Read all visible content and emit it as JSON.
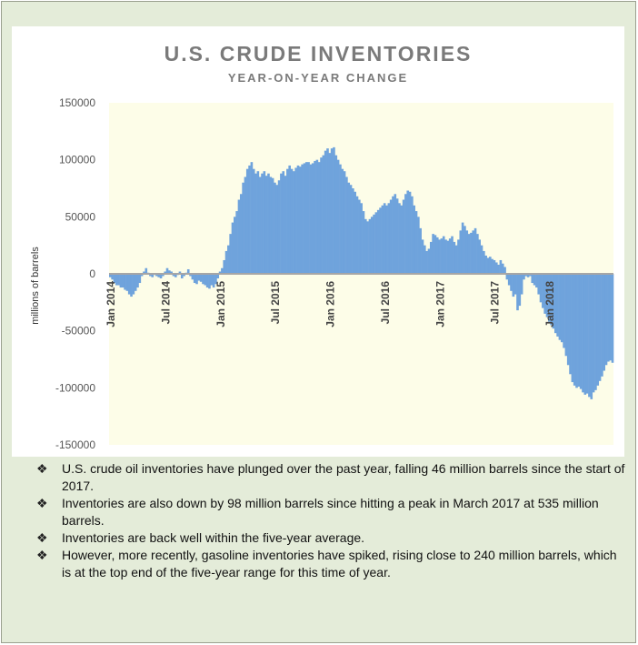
{
  "colors": {
    "bar": "#6fa3dc",
    "plot_background": "#fdfde8",
    "zero_line": "#a6a6a6",
    "page_background": "#e4ecd9"
  },
  "chart_data": {
    "type": "bar",
    "title": "U.S. CRUDE INVENTORIES",
    "subtitle": "YEAR-ON-YEAR CHANGE",
    "ylabel": "millions of barrels",
    "xlabel": "",
    "ylim": [
      -150000,
      150000
    ],
    "y_ticks": [
      "150000",
      "100000",
      "50000",
      "0",
      "-50000",
      "-100000",
      "-150000"
    ],
    "x_ticks": [
      "Jan 2014",
      "Jul 2014",
      "Jan 2015",
      "Jul 2015",
      "Jan 2016",
      "Jul 2016",
      "Jan 2017",
      "Jul 2017",
      "Jan 2018"
    ],
    "x_tick_index": [
      0,
      26,
      52,
      78,
      104,
      130,
      156,
      182,
      208
    ],
    "grid": false,
    "legend": "none",
    "values": [
      -3000,
      -5000,
      -8000,
      -10000,
      -10000,
      -12000,
      -12000,
      -14000,
      -15000,
      -18000,
      -20000,
      -18000,
      -15000,
      -12000,
      -8000,
      -2000,
      2000,
      5000,
      1000,
      -2000,
      -3000,
      -1000,
      -2000,
      -3000,
      -4000,
      -2000,
      2000,
      5000,
      3000,
      2000,
      -2000,
      -3000,
      -1000,
      2000,
      -4000,
      -2000,
      1000,
      4000,
      -2000,
      -5000,
      -8000,
      -9000,
      -6000,
      -7000,
      -9000,
      -10000,
      -12000,
      -13000,
      -10000,
      -12000,
      -9000,
      -4000,
      2000,
      5000,
      12000,
      20000,
      25000,
      35000,
      45000,
      50000,
      55000,
      65000,
      70000,
      80000,
      85000,
      92000,
      95000,
      98000,
      92000,
      88000,
      90000,
      85000,
      88000,
      90000,
      86000,
      88000,
      85000,
      84000,
      80000,
      78000,
      82000,
      88000,
      90000,
      86000,
      92000,
      95000,
      92000,
      90000,
      93000,
      95000,
      94000,
      96000,
      97000,
      98000,
      98000,
      96000,
      97000,
      99000,
      100000,
      98000,
      102000,
      104000,
      108000,
      110000,
      106000,
      110000,
      111000,
      104000,
      100000,
      96000,
      92000,
      90000,
      85000,
      80000,
      78000,
      75000,
      72000,
      68000,
      65000,
      62000,
      55000,
      48000,
      46000,
      48000,
      50000,
      52000,
      54000,
      56000,
      58000,
      60000,
      62000,
      60000,
      62000,
      65000,
      68000,
      70000,
      66000,
      62000,
      60000,
      65000,
      70000,
      73000,
      72000,
      68000,
      60000,
      55000,
      50000,
      40000,
      30000,
      25000,
      20000,
      22000,
      28000,
      35000,
      34000,
      32000,
      30000,
      31000,
      33000,
      30000,
      29000,
      31000,
      33000,
      28000,
      25000,
      30000,
      38000,
      45000,
      42000,
      38000,
      35000,
      36000,
      38000,
      40000,
      35000,
      30000,
      25000,
      20000,
      16000,
      14000,
      15000,
      13000,
      12000,
      10000,
      8000,
      12000,
      9000,
      6000,
      -5000,
      -10000,
      -15000,
      -20000,
      -18000,
      -32000,
      -28000,
      -18000,
      -5000,
      -2000,
      -3000,
      -2000,
      -8000,
      -10000,
      -12000,
      -18000,
      -25000,
      -30000,
      -35000,
      -38000,
      -42000,
      -45000,
      -48000,
      -52000,
      -55000,
      -58000,
      -60000,
      -65000,
      -72000,
      -80000,
      -88000,
      -95000,
      -98000,
      -100000,
      -99000,
      -101000,
      -104000,
      -106000,
      -105000,
      -108000,
      -110000,
      -104000,
      -102000,
      -98000,
      -94000,
      -90000,
      -85000,
      -80000,
      -77000,
      -76000,
      -78000
    ]
  },
  "bullets": [
    "U.S. crude oil inventories have plunged over the past year, falling 46 million barrels since the start of 2017.",
    "Inventories are also down by 98 million barrels since hitting a peak in March 2017 at 535 million barrels.",
    "Inventories are back well within the five-year average.",
    "However, more recently, gasoline inventories have spiked, rising close to 240 million barrels, which is at the top end of the five-year range for this time of year."
  ],
  "bullet_icon": "four-diamond-bullet-icon"
}
